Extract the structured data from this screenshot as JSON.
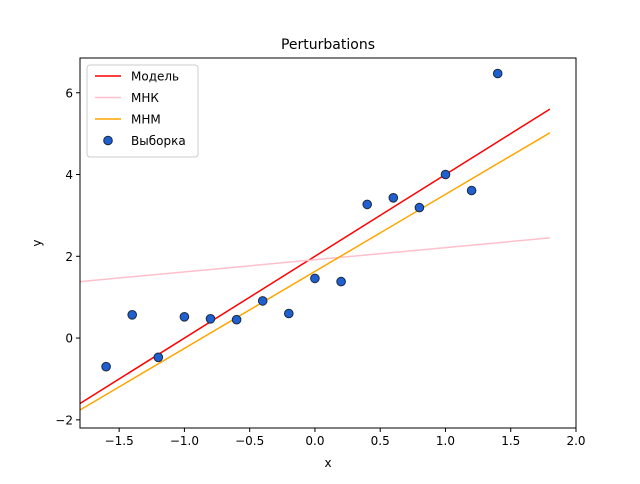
{
  "chart_data": {
    "type": "scatter",
    "title": "Perturbations",
    "xlabel": "x",
    "ylabel": "y",
    "xlim": [
      -1.8,
      2.0
    ],
    "ylim": [
      -2.2,
      6.85
    ],
    "xticks": [
      -1.5,
      -1.0,
      -0.5,
      0.0,
      0.5,
      1.0,
      1.5,
      2.0
    ],
    "xtick_labels": [
      "−1.5",
      "−1.0",
      "−0.5",
      "0.0",
      "0.5",
      "1.0",
      "1.5",
      "2.0"
    ],
    "yticks": [
      -2,
      0,
      2,
      4,
      6
    ],
    "ytick_labels": [
      "−2",
      "0",
      "2",
      "4",
      "6"
    ],
    "grid": false,
    "legend_position": "top-left",
    "lines": [
      {
        "name": "Модель",
        "color": "#ff0000",
        "x": [
          -1.8,
          1.8
        ],
        "y": [
          -1.6,
          5.6
        ]
      },
      {
        "name": "МНК",
        "color": "#ffc0cb",
        "x": [
          -1.8,
          1.8
        ],
        "y": [
          1.38,
          2.45
        ]
      },
      {
        "name": "МНМ",
        "color": "#ffa500",
        "x": [
          -1.8,
          1.8
        ],
        "y": [
          -1.76,
          5.02
        ]
      }
    ],
    "points": {
      "name": "Выборка",
      "face_color": "#1f5fd0",
      "edge_color": "#1a2a40",
      "x": [
        -1.6,
        -1.4,
        -1.2,
        -1.0,
        -0.8,
        -0.6,
        -0.4,
        -0.2,
        0.0,
        0.2,
        0.4,
        0.6,
        0.8,
        1.0,
        1.2,
        1.4
      ],
      "y": [
        -0.7,
        0.57,
        -0.47,
        0.52,
        0.47,
        0.45,
        0.91,
        0.6,
        1.46,
        1.38,
        3.27,
        3.43,
        3.19,
        4.0,
        3.61,
        6.47
      ]
    }
  }
}
